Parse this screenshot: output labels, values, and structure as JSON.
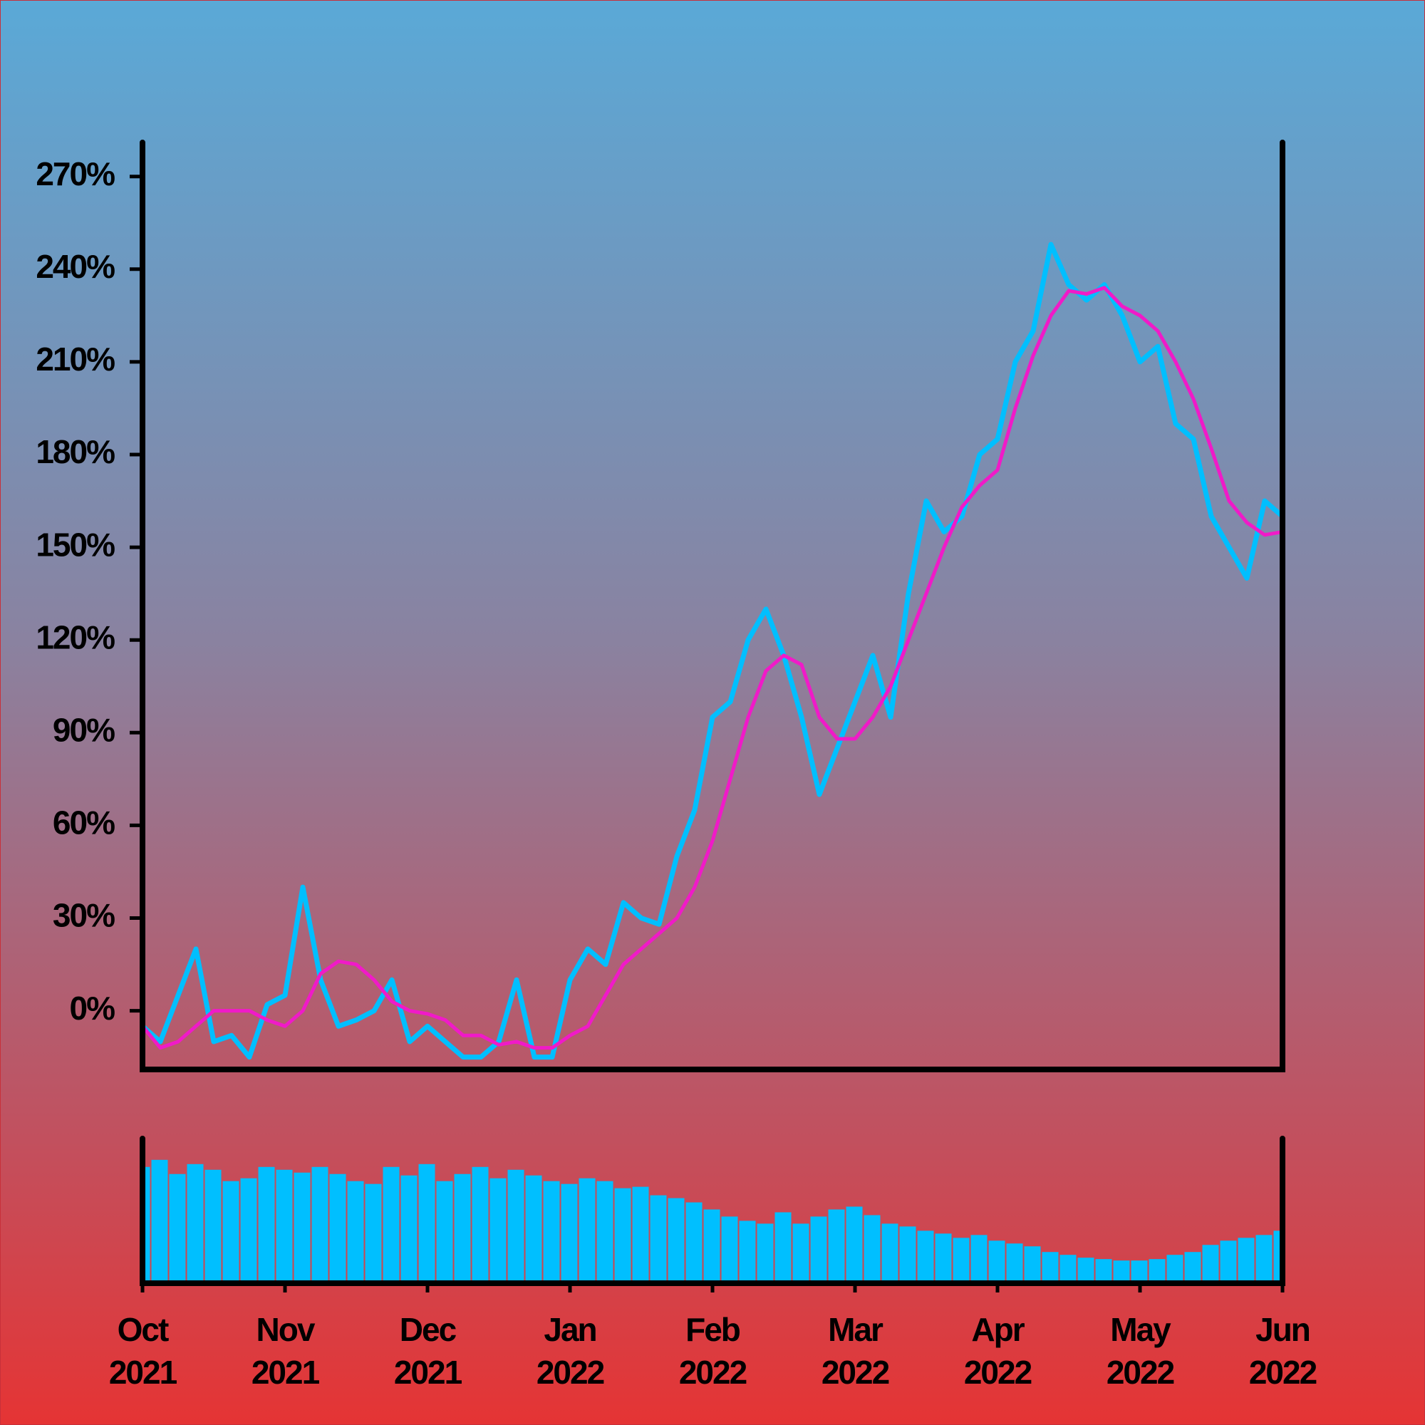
{
  "chart_data": {
    "type": "line",
    "categories": [
      "Oct\n2021",
      null,
      null,
      null,
      null,
      null,
      null,
      null,
      "Nov\n2021",
      null,
      null,
      null,
      null,
      null,
      null,
      null,
      "Dec\n2021",
      null,
      null,
      null,
      null,
      null,
      null,
      null,
      "Jan\n2022",
      null,
      null,
      null,
      null,
      null,
      null,
      null,
      "Feb\n2022",
      null,
      null,
      null,
      null,
      null,
      null,
      null,
      "Mar\n2022",
      null,
      null,
      null,
      null,
      null,
      null,
      null,
      "Apr\n2022",
      null,
      null,
      null,
      null,
      null,
      null,
      null,
      "May\n2022",
      null,
      null,
      null,
      null,
      null,
      null,
      null,
      "Jun\n2022"
    ],
    "ylim": [
      -19,
      281
    ],
    "yticks": [
      {
        "value": 0,
        "label": "0%"
      },
      {
        "value": 30,
        "label": "30%"
      },
      {
        "value": 60,
        "label": "60%"
      },
      {
        "value": 90,
        "label": "90%"
      },
      {
        "value": 120,
        "label": "120%"
      },
      {
        "value": 150,
        "label": "150%"
      },
      {
        "value": 180,
        "label": "180%"
      },
      {
        "value": 210,
        "label": "210%"
      },
      {
        "value": 240,
        "label": "240%"
      },
      {
        "value": 270,
        "label": "270%"
      }
    ],
    "y2lim": [
      0,
      100
    ],
    "series": [
      {
        "type": "line",
        "color": "#00bfff",
        "values": [
          -5,
          -10,
          5,
          20,
          -10,
          -8,
          -15,
          2,
          5,
          40,
          10,
          -5,
          -3,
          0,
          10,
          -10,
          -5,
          -10,
          -15,
          -15,
          -10,
          10,
          -15,
          -15,
          10,
          20,
          15,
          35,
          30,
          28,
          50,
          65,
          95,
          100,
          120,
          130,
          115,
          95,
          70,
          85,
          100,
          115,
          95,
          135,
          165,
          155,
          160,
          180,
          185,
          210,
          220,
          248,
          235,
          230,
          235,
          225,
          210,
          215,
          190,
          185,
          160,
          150,
          140,
          165,
          160
        ]
      },
      {
        "type": "line",
        "color": "#f01ac8",
        "values": [
          -5,
          -12,
          -10,
          -5,
          0,
          0,
          0,
          -3,
          -5,
          0,
          12,
          16,
          15,
          10,
          3,
          0,
          -1,
          -3,
          -8,
          -8,
          -11,
          -10,
          -12,
          -12,
          -8,
          -5,
          5,
          15,
          20,
          25,
          30,
          40,
          55,
          75,
          95,
          110,
          115,
          112,
          95,
          88,
          88,
          95,
          105,
          120,
          135,
          150,
          163,
          170,
          175,
          195,
          212,
          225,
          233,
          232,
          234,
          228,
          225,
          220,
          210,
          198,
          182,
          165,
          158,
          154,
          155
        ]
      },
      {
        "type": "bar",
        "axis": "y2",
        "color": "#00bfff",
        "values": [
          80,
          85,
          75,
          82,
          78,
          70,
          72,
          80,
          78,
          76,
          80,
          75,
          70,
          68,
          80,
          74,
          82,
          70,
          75,
          80,
          72,
          78,
          74,
          70,
          68,
          72,
          70,
          65,
          66,
          60,
          58,
          55,
          50,
          45,
          42,
          40,
          48,
          40,
          45,
          50,
          52,
          46,
          40,
          38,
          35,
          33,
          30,
          32,
          28,
          26,
          24,
          20,
          18,
          16,
          15,
          14,
          14,
          15,
          18,
          20,
          25,
          28,
          30,
          32,
          35
        ]
      }
    ]
  }
}
